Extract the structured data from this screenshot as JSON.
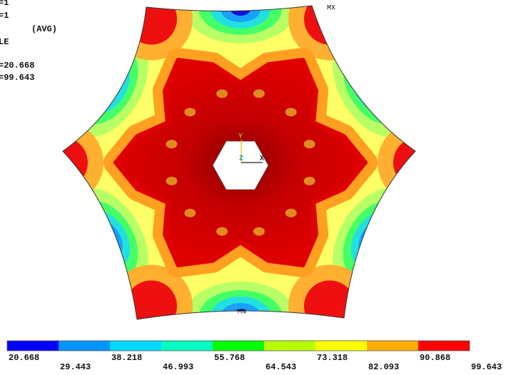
{
  "info": {
    "lines": [
      "=1",
      "=1",
      "(AVG)",
      "LE",
      "=20.668",
      "=99.643"
    ]
  },
  "markers": {
    "max": "MX",
    "min": "MN"
  },
  "triad": {
    "x": "X",
    "y": "Y",
    "z": "Z"
  },
  "legend": {
    "colors": [
      "#0000ff",
      "#0094ff",
      "#00d8ff",
      "#00ffc0",
      "#00ff00",
      "#b8ff00",
      "#ffff00",
      "#ffae00",
      "#ff0000"
    ],
    "labels": [
      "20.668",
      "29.443",
      "38.218",
      "46.993",
      "55.768",
      "64.543",
      "73.318",
      "82.093",
      "90.868",
      "99.643"
    ]
  }
}
